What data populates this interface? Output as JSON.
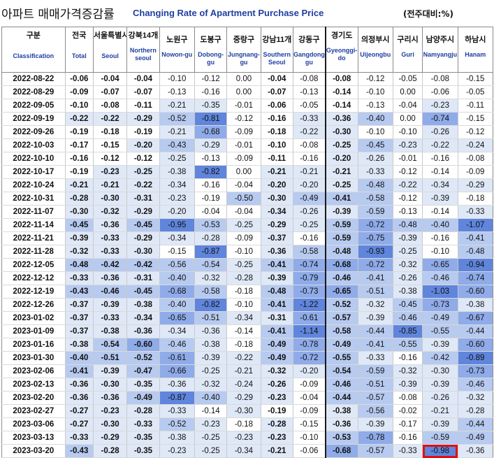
{
  "title": {
    "korean": "아파트 매매가격증감률",
    "english": "Changing Rate of Apartment Purchase Price",
    "unit": "(전주대비:%)"
  },
  "columns": [
    {
      "kor": "구분",
      "eng": "Classification"
    },
    {
      "kor": "전국",
      "eng": "Total"
    },
    {
      "kor": "서울특별시",
      "eng": "Seoul"
    },
    {
      "kor": "강북14개",
      "eng": "Northern seoul"
    },
    {
      "kor": "노원구",
      "eng": "Nowon-gu"
    },
    {
      "kor": "도봉구",
      "eng": "Dobong-gu"
    },
    {
      "kor": "중랑구",
      "eng": "Jungnang-gu"
    },
    {
      "kor": "강남11개",
      "eng": "Southern Seoul"
    },
    {
      "kor": "강동구",
      "eng": "Gangdong-gu"
    },
    {
      "kor": "경기도",
      "eng": "Gyeonggi-do"
    },
    {
      "kor": "의정부시",
      "eng": "Uijeongbu"
    },
    {
      "kor": "구리시",
      "eng": "Guri"
    },
    {
      "kor": "남양주시",
      "eng": "Namyangju"
    },
    {
      "kor": "하남시",
      "eng": "Hanam"
    }
  ],
  "rows": [
    {
      "date": "2022-08-22",
      "values": [
        "-0.06",
        "-0.04",
        "-0.04",
        "-0.10",
        "-0.12",
        "0.00",
        "-0.04",
        "-0.08",
        "-0.08",
        "-0.12",
        "-0.05",
        "-0.08",
        "-0.15"
      ]
    },
    {
      "date": "2022-08-29",
      "values": [
        "-0.09",
        "-0.07",
        "-0.07",
        "-0.13",
        "-0.16",
        "0.00",
        "-0.07",
        "-0.13",
        "-0.14",
        "-0.10",
        "0.00",
        "-0.06",
        "-0.05"
      ]
    },
    {
      "date": "2022-09-05",
      "values": [
        "-0.10",
        "-0.08",
        "-0.11",
        "-0.21",
        "-0.35",
        "-0.01",
        "-0.06",
        "-0.05",
        "-0.14",
        "-0.13",
        "-0.04",
        "-0.23",
        "-0.11"
      ]
    },
    {
      "date": "2022-09-19",
      "values": [
        "-0.22",
        "-0.22",
        "-0.29",
        "-0.52",
        "-0.81",
        "-0.12",
        "-0.16",
        "-0.33",
        "-0.36",
        "-0.40",
        "0.00",
        "-0.74",
        "-0.15"
      ]
    },
    {
      "date": "2022-09-26",
      "values": [
        "-0.19",
        "-0.18",
        "-0.19",
        "-0.21",
        "-0.68",
        "-0.09",
        "-0.18",
        "-0.22",
        "-0.30",
        "-0.10",
        "-0.10",
        "-0.26",
        "-0.12"
      ]
    },
    {
      "date": "2022-10-03",
      "values": [
        "-0.17",
        "-0.15",
        "-0.20",
        "-0.43",
        "-0.29",
        "-0.01",
        "-0.10",
        "-0.08",
        "-0.25",
        "-0.45",
        "-0.23",
        "-0.22",
        "-0.24"
      ]
    },
    {
      "date": "2022-10-10",
      "values": [
        "-0.16",
        "-0.12",
        "-0.12",
        "-0.25",
        "-0.13",
        "-0.09",
        "-0.11",
        "-0.16",
        "-0.20",
        "-0.26",
        "-0.01",
        "-0.16",
        "-0.08"
      ]
    },
    {
      "date": "2022-10-17",
      "values": [
        "-0.19",
        "-0.23",
        "-0.25",
        "-0.38",
        "-0.82",
        "0.00",
        "-0.21",
        "-0.21",
        "-0.21",
        "-0.33",
        "-0.12",
        "-0.14",
        "-0.09"
      ]
    },
    {
      "date": "2022-10-24",
      "values": [
        "-0.21",
        "-0.21",
        "-0.22",
        "-0.34",
        "-0.16",
        "-0.04",
        "-0.20",
        "-0.20",
        "-0.25",
        "-0.48",
        "-0.22",
        "-0.34",
        "-0.29"
      ]
    },
    {
      "date": "2022-10-31",
      "values": [
        "-0.28",
        "-0.30",
        "-0.31",
        "-0.23",
        "-0.19",
        "-0.50",
        "-0.30",
        "-0.49",
        "-0.41",
        "-0.58",
        "-0.12",
        "-0.39",
        "-0.18"
      ]
    },
    {
      "date": "2022-11-07",
      "values": [
        "-0.30",
        "-0.32",
        "-0.29",
        "-0.20",
        "-0.04",
        "-0.04",
        "-0.34",
        "-0.26",
        "-0.39",
        "-0.59",
        "-0.13",
        "-0.14",
        "-0.33"
      ]
    },
    {
      "date": "2022-11-14",
      "values": [
        "-0.45",
        "-0.36",
        "-0.45",
        "-0.95",
        "-0.53",
        "-0.25",
        "-0.29",
        "-0.25",
        "-0.59",
        "-0.72",
        "-0.48",
        "-0.40",
        "-1.07"
      ]
    },
    {
      "date": "2022-11-21",
      "values": [
        "-0.39",
        "-0.33",
        "-0.29",
        "-0.34",
        "-0.28",
        "-0.09",
        "-0.37",
        "-0.16",
        "-0.59",
        "-0.75",
        "-0.39",
        "-0.16",
        "-0.41"
      ]
    },
    {
      "date": "2022-11-28",
      "values": [
        "-0.32",
        "-0.33",
        "-0.30",
        "-0.15",
        "-0.87",
        "-0.10",
        "-0.36",
        "-0.58",
        "-0.48",
        "-0.93",
        "-0.25",
        "-0.10",
        "-0.48"
      ]
    },
    {
      "date": "2022-12-05",
      "values": [
        "-0.48",
        "-0.42",
        "-0.42",
        "-0.56",
        "-0.54",
        "-0.25",
        "-0.41",
        "-0.74",
        "-0.68",
        "-0.72",
        "-0.32",
        "-0.65",
        "-0.94"
      ]
    },
    {
      "date": "2022-12-12",
      "values": [
        "-0.33",
        "-0.36",
        "-0.31",
        "-0.40",
        "-0.32",
        "-0.28",
        "-0.39",
        "-0.79",
        "-0.46",
        "-0.41",
        "-0.26",
        "-0.46",
        "-0.74"
      ]
    },
    {
      "date": "2022-12-19",
      "values": [
        "-0.43",
        "-0.46",
        "-0.45",
        "-0.68",
        "-0.58",
        "-0.18",
        "-0.48",
        "-0.73",
        "-0.65",
        "-0.51",
        "-0.38",
        "-1.03",
        "-0.60"
      ]
    },
    {
      "date": "2022-12-26",
      "values": [
        "-0.37",
        "-0.39",
        "-0.38",
        "-0.40",
        "-0.82",
        "-0.10",
        "-0.41",
        "-1.22",
        "-0.52",
        "-0.32",
        "-0.45",
        "-0.73",
        "-0.38"
      ]
    },
    {
      "date": "2023-01-02",
      "values": [
        "-0.37",
        "-0.33",
        "-0.34",
        "-0.65",
        "-0.51",
        "-0.34",
        "-0.31",
        "-0.61",
        "-0.57",
        "-0.39",
        "-0.46",
        "-0.49",
        "-0.67"
      ]
    },
    {
      "date": "2023-01-09",
      "values": [
        "-0.37",
        "-0.38",
        "-0.36",
        "-0.34",
        "-0.36",
        "-0.14",
        "-0.41",
        "-1.14",
        "-0.58",
        "-0.44",
        "-0.85",
        "-0.55",
        "-0.44"
      ]
    },
    {
      "date": "2023-01-16",
      "values": [
        "-0.38",
        "-0.54",
        "-0.60",
        "-0.46",
        "-0.38",
        "-0.18",
        "-0.49",
        "-0.78",
        "-0.49",
        "-0.41",
        "-0.55",
        "-0.39",
        "-0.60"
      ]
    },
    {
      "date": "2023-01-30",
      "values": [
        "-0.40",
        "-0.51",
        "-0.52",
        "-0.61",
        "-0.39",
        "-0.22",
        "-0.49",
        "-0.72",
        "-0.55",
        "-0.33",
        "-0.16",
        "-0.42",
        "-0.89"
      ]
    },
    {
      "date": "2023-02-06",
      "values": [
        "-0.41",
        "-0.39",
        "-0.47",
        "-0.66",
        "-0.25",
        "-0.21",
        "-0.32",
        "-0.20",
        "-0.54",
        "-0.59",
        "-0.32",
        "-0.30",
        "-0.73"
      ]
    },
    {
      "date": "2023-02-13",
      "values": [
        "-0.36",
        "-0.30",
        "-0.35",
        "-0.36",
        "-0.32",
        "-0.24",
        "-0.26",
        "-0.09",
        "-0.46",
        "-0.51",
        "-0.39",
        "-0.39",
        "-0.46"
      ]
    },
    {
      "date": "2023-02-20",
      "values": [
        "-0.36",
        "-0.36",
        "-0.49",
        "-0.87",
        "-0.40",
        "-0.29",
        "-0.23",
        "-0.04",
        "-0.44",
        "-0.57",
        "-0.08",
        "-0.26",
        "-0.32"
      ]
    },
    {
      "date": "2023-02-27",
      "values": [
        "-0.27",
        "-0.23",
        "-0.28",
        "-0.33",
        "-0.14",
        "-0.30",
        "-0.19",
        "-0.09",
        "-0.38",
        "-0.56",
        "-0.02",
        "-0.21",
        "-0.28"
      ]
    },
    {
      "date": "2023-03-06",
      "values": [
        "-0.27",
        "-0.30",
        "-0.33",
        "-0.52",
        "-0.23",
        "-0.18",
        "-0.28",
        "-0.15",
        "-0.36",
        "-0.39",
        "-0.17",
        "-0.39",
        "-0.44"
      ]
    },
    {
      "date": "2023-03-13",
      "values": [
        "-0.33",
        "-0.29",
        "-0.35",
        "-0.38",
        "-0.25",
        "-0.23",
        "-0.23",
        "-0.10",
        "-0.53",
        "-0.78",
        "-0.16",
        "-0.59",
        "-0.49"
      ]
    },
    {
      "date": "2023-03-20",
      "values": [
        "-0.43",
        "-0.28",
        "-0.35",
        "-0.23",
        "-0.25",
        "-0.34",
        "-0.21",
        "-0.06",
        "-0.68",
        "-0.57",
        "-0.33",
        "-0.98",
        "-0.36"
      ]
    }
  ],
  "bold_columns": [
    0,
    1,
    2,
    6,
    8
  ],
  "highlight_cell": {
    "row": 28,
    "col": 11
  },
  "colors": {
    "title_english": "#1f3fa0",
    "shade_1": "#ffffff",
    "shade_2": "#dfe8f7",
    "shade_3": "#b7caf0",
    "shade_4": "#8fabe9",
    "shade_5": "#5f85dc",
    "highlight_border": "#e01010"
  }
}
